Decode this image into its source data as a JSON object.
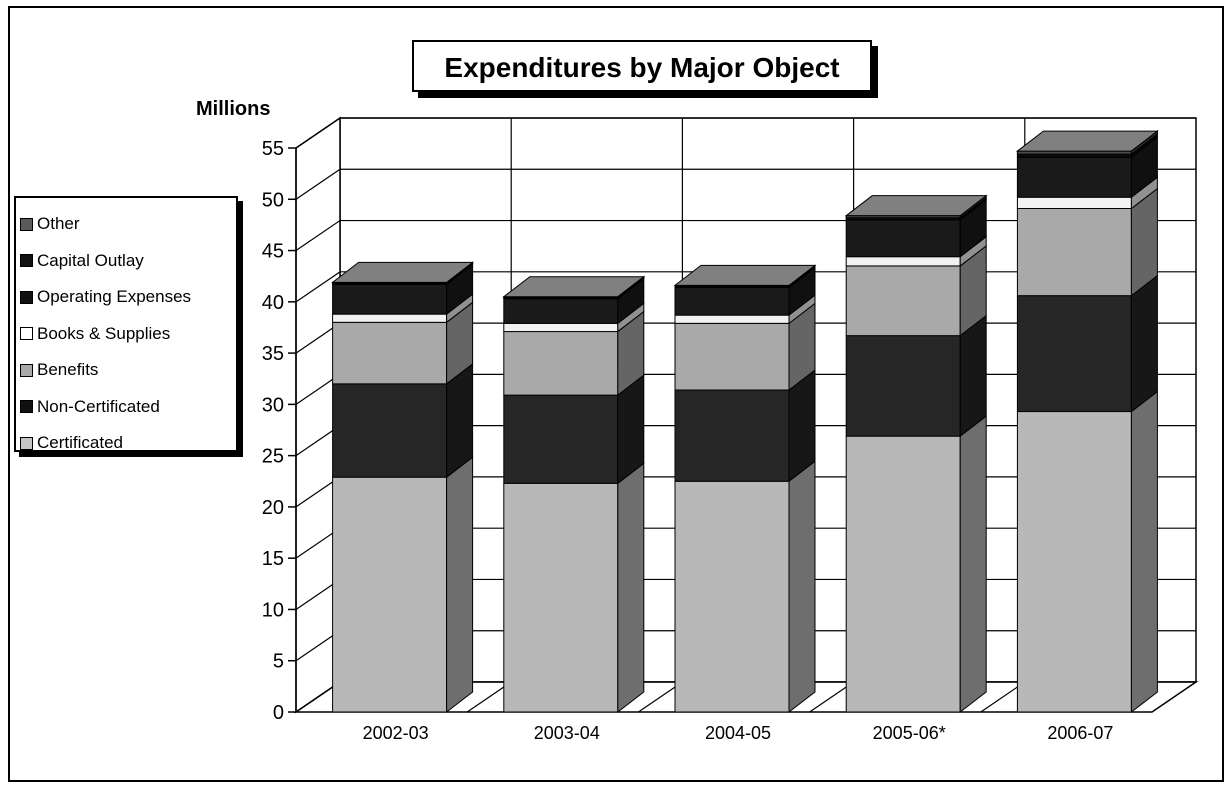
{
  "chart_data": {
    "type": "bar",
    "stacked": true,
    "three_d": true,
    "title": "Expenditures by Major Object",
    "ylabel": "Millions",
    "xlabel": "",
    "ylim": [
      0,
      55
    ],
    "yticks": [
      0,
      5,
      10,
      15,
      20,
      25,
      30,
      35,
      40,
      45,
      50,
      55
    ],
    "grid": true,
    "legend_position": "left",
    "categories": [
      "2002-03",
      "2003-04",
      "2004-05",
      "2005-06*",
      "2006-07"
    ],
    "series": [
      {
        "name": "Certificated",
        "color": "#b8b8b8",
        "values": [
          22.9,
          22.3,
          22.5,
          26.9,
          29.3
        ]
      },
      {
        "name": "Non-Certificated",
        "color": "#262626",
        "values": [
          9.1,
          8.6,
          8.9,
          9.8,
          11.3
        ]
      },
      {
        "name": "Benefits",
        "color": "#a9a9a9",
        "values": [
          6.0,
          6.2,
          6.5,
          6.8,
          8.5
        ]
      },
      {
        "name": "Books & Supplies",
        "color": "#f2f2f2",
        "values": [
          0.8,
          0.8,
          0.8,
          0.9,
          1.1
        ]
      },
      {
        "name": "Operating Expenses",
        "color": "#1a1a1a",
        "values": [
          2.9,
          2.4,
          2.7,
          3.6,
          3.9
        ]
      },
      {
        "name": "Capital Outlay",
        "color": "#0d0d0d",
        "values": [
          0.1,
          0.1,
          0.1,
          0.2,
          0.3
        ]
      },
      {
        "name": "Other",
        "color": "#4a4a4a",
        "values": [
          0.1,
          0.1,
          0.1,
          0.2,
          0.3
        ]
      }
    ]
  },
  "legend": {
    "items": [
      {
        "label": "Other",
        "color": "#5a5a5a"
      },
      {
        "label": "Capital Outlay",
        "color": "#111111"
      },
      {
        "label": "Operating Expenses",
        "color": "#111111"
      },
      {
        "label": "Books & Supplies",
        "color": "#ffffff"
      },
      {
        "label": "Benefits",
        "color": "#a9a9a9"
      },
      {
        "label": "Non-Certificated",
        "color": "#111111"
      },
      {
        "label": "Certificated",
        "color": "#c4c4c4"
      }
    ]
  }
}
